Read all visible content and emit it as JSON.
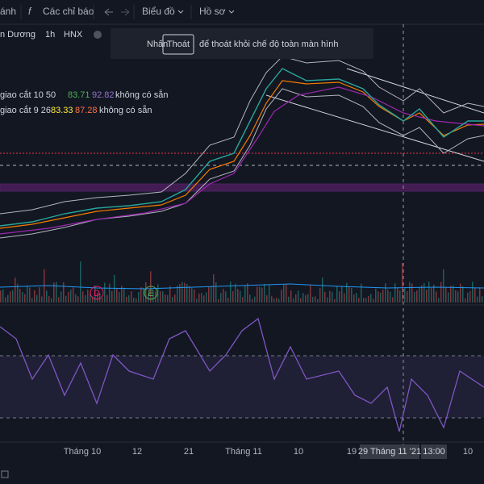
{
  "toolbar": {
    "items": [
      "ánh",
      "Các chỉ báo",
      "Biểu đồ",
      "Hồ sơ"
    ]
  },
  "symbol": {
    "name": "n Dương",
    "interval": "1h",
    "exchange": "HNX"
  },
  "banner": {
    "before": "Nhấn",
    "key": "Thoát",
    "after": "để thoát khỏi chế độ toàn màn hình"
  },
  "indicators": [
    {
      "label": "giao cắt 10 50",
      "v1": "83.71",
      "v2": "92.82",
      "status": "không có sẵn"
    },
    {
      "label": "giao cắt 9 26",
      "v1": "83.33",
      "v2": "87.28",
      "status": "không có sẵn"
    }
  ],
  "markers": [
    "D",
    "E"
  ],
  "xaxis": {
    "labels": [
      "Tháng 10",
      "12",
      "21",
      "Tháng 11",
      "10",
      "19"
    ],
    "crosshair_date": "29 Tháng 11 '21",
    "crosshair_time": "13:00",
    "last": "10"
  }
}
